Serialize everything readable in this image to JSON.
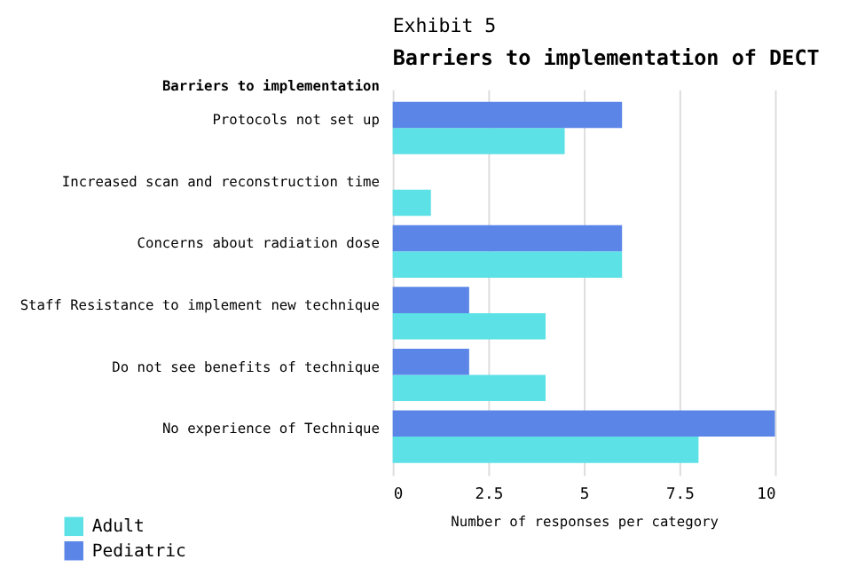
{
  "chart_data": {
    "type": "bar",
    "orientation": "horizontal",
    "annotations": [
      "Exhibit 5"
    ],
    "title": "Barriers to implementation of DECT",
    "ylabel": "Barriers to implementation",
    "xlabel": "Number of responses per category",
    "categories": [
      "Protocols not set up",
      "Increased scan and reconstruction time",
      "Concerns about radiation dose",
      "Staff Resistance to implement new technique",
      "Do not see benefits of technique",
      "No experience of Technique"
    ],
    "series": [
      {
        "name": "Adult",
        "color": "#5ce1e6",
        "values": [
          4.5,
          1,
          6,
          4,
          4,
          8
        ]
      },
      {
        "name": "Pediatric",
        "color": "#5b86e8",
        "values": [
          6,
          null,
          6,
          2,
          2,
          10
        ]
      }
    ],
    "xlim": [
      0,
      10
    ],
    "xticks": [
      0,
      2.5,
      5,
      7.5,
      10
    ],
    "grid": "x",
    "legend": "bottom left"
  }
}
